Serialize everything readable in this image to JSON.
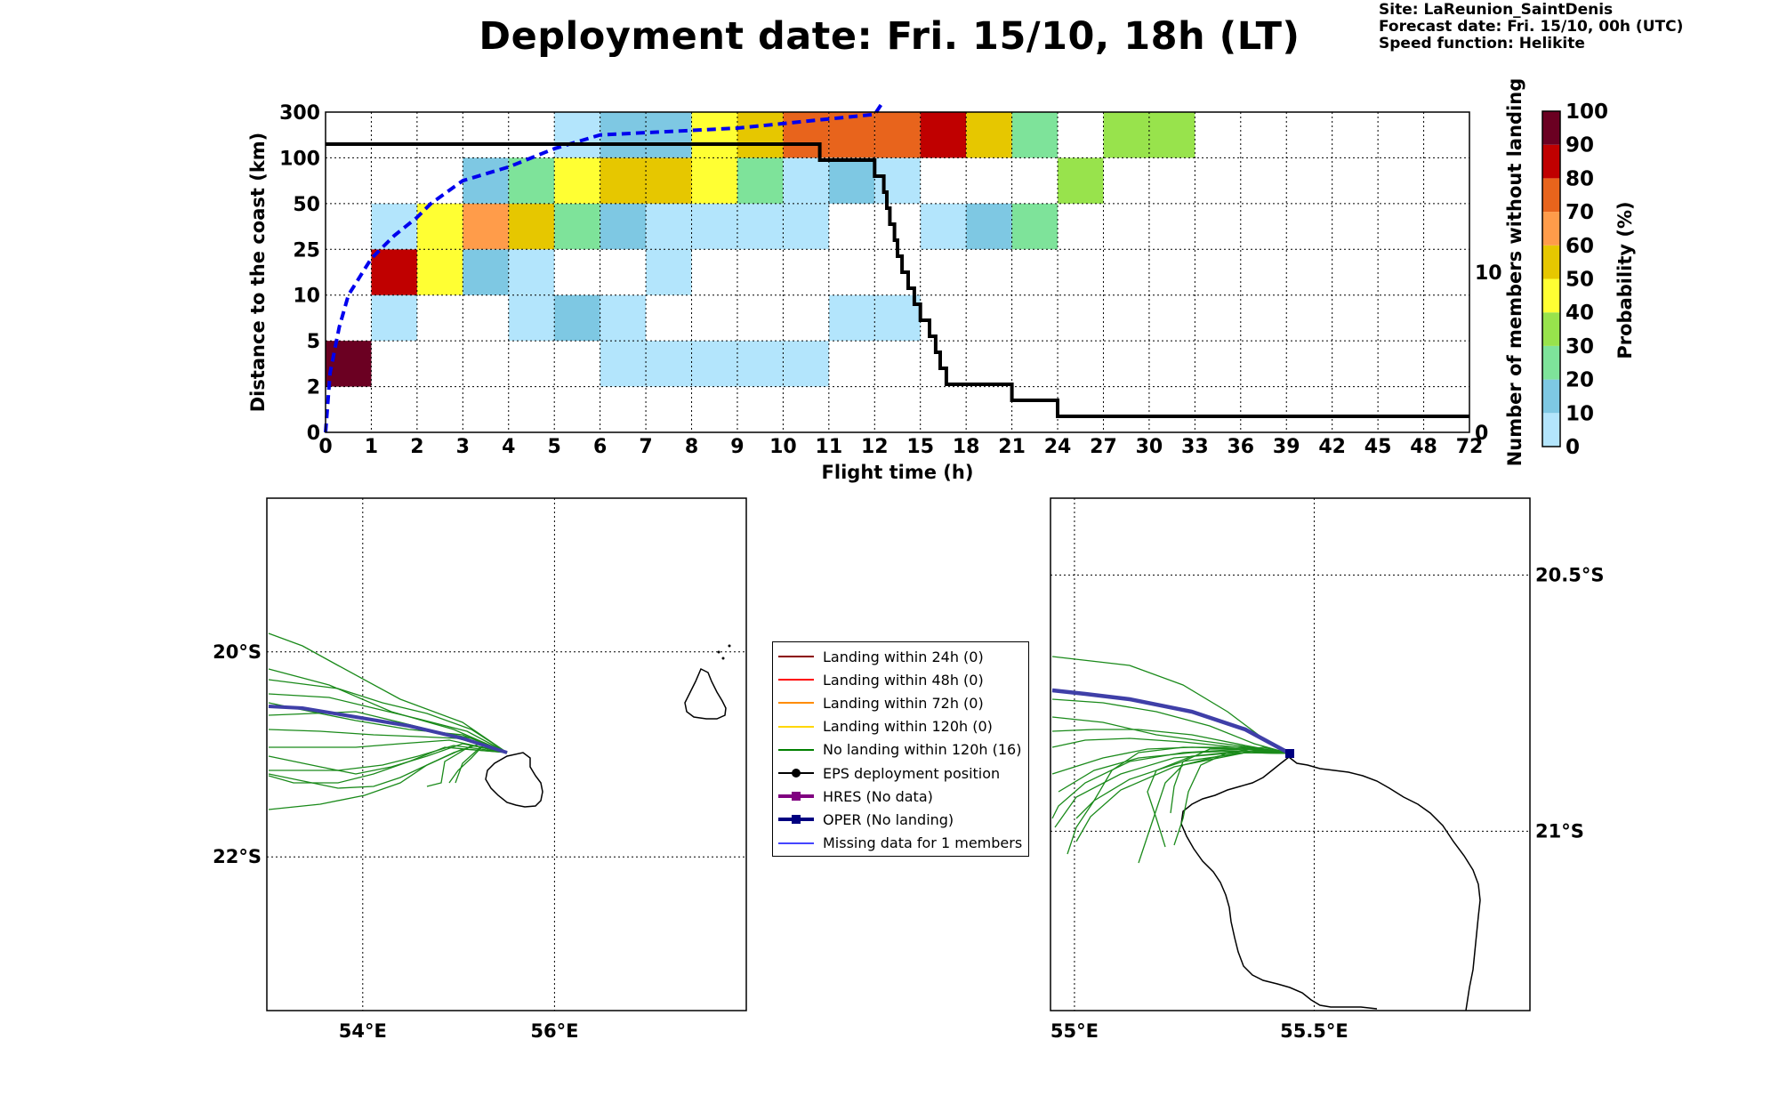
{
  "title": "Deployment date: Fri. 15/10, 18h (LT)",
  "meta": {
    "site": "Site: LaReunion_SaintDenis",
    "forecast": "Forecast date: Fri. 15/10, 00h (UTC)",
    "speed": "Speed function: Helikite"
  },
  "chart_data": [
    {
      "type": "heatmap",
      "xlabel": "Flight time (h)",
      "ylabel": "Distance to the coast (km)",
      "y2label": "Number of members without landing",
      "colorbar_label": "Probability (%)",
      "x_categories": [
        "0",
        "1",
        "2",
        "3",
        "4",
        "5",
        "6",
        "7",
        "8",
        "9",
        "10",
        "11",
        "12",
        "15",
        "18",
        "21",
        "24",
        "27",
        "30",
        "33",
        "36",
        "39",
        "42",
        "45",
        "48",
        "72"
      ],
      "y_categories": [
        "0",
        "2",
        "5",
        "10",
        "25",
        "50",
        "100",
        "300"
      ],
      "y2_ticks": [
        "0",
        "10"
      ],
      "y2_range": [
        0,
        18
      ],
      "colorbar_ticks": [
        "0",
        "10",
        "20",
        "30",
        "40",
        "50",
        "60",
        "70",
        "80",
        "90",
        "100"
      ],
      "colorbar_colors": [
        "#b3e5fc",
        "#7ec8e3",
        "#7ee39a",
        "#98e34c",
        "#ffff33",
        "#e6c700",
        "#ff9c4a",
        "#e8641c",
        "#c00000",
        "#6b0022"
      ],
      "grid": true,
      "cells": [
        {
          "t0": 0,
          "t1": 1,
          "y": 1,
          "p": 100
        },
        {
          "t0": 1,
          "t1": 2,
          "y": 2,
          "p": 5
        },
        {
          "t0": 1,
          "t1": 2,
          "y": 3,
          "p": 85
        },
        {
          "t0": 1,
          "t1": 2,
          "y": 4,
          "p": 5
        },
        {
          "t0": 2,
          "t1": 3,
          "y": 3,
          "p": 45
        },
        {
          "t0": 2,
          "t1": 3,
          "y": 4,
          "p": 45
        },
        {
          "t0": 3,
          "t1": 4,
          "y": 3,
          "p": 15
        },
        {
          "t0": 3,
          "t1": 4,
          "y": 4,
          "p": 65
        },
        {
          "t0": 3,
          "t1": 4,
          "y": 5,
          "p": 15
        },
        {
          "t0": 4,
          "t1": 5,
          "y": 2,
          "p": 5
        },
        {
          "t0": 4,
          "t1": 5,
          "y": 3,
          "p": 5
        },
        {
          "t0": 4,
          "t1": 5,
          "y": 4,
          "p": 55
        },
        {
          "t0": 4,
          "t1": 5,
          "y": 5,
          "p": 25
        },
        {
          "t0": 5,
          "t1": 6,
          "y": 2,
          "p": 15
        },
        {
          "t0": 5,
          "t1": 6,
          "y": 4,
          "p": 25
        },
        {
          "t0": 5,
          "t1": 6,
          "y": 5,
          "p": 45
        },
        {
          "t0": 5,
          "t1": 6,
          "y": 6,
          "p": 5
        },
        {
          "t0": 6,
          "t1": 7,
          "y": 1,
          "p": 5
        },
        {
          "t0": 6,
          "t1": 7,
          "y": 2,
          "p": 5
        },
        {
          "t0": 6,
          "t1": 7,
          "y": 4,
          "p": 15
        },
        {
          "t0": 6,
          "t1": 7,
          "y": 5,
          "p": 55
        },
        {
          "t0": 6,
          "t1": 7,
          "y": 6,
          "p": 15
        },
        {
          "t0": 7,
          "t1": 8,
          "y": 1,
          "p": 5
        },
        {
          "t0": 7,
          "t1": 8,
          "y": 3,
          "p": 5
        },
        {
          "t0": 7,
          "t1": 8,
          "y": 4,
          "p": 5
        },
        {
          "t0": 7,
          "t1": 8,
          "y": 5,
          "p": 55
        },
        {
          "t0": 7,
          "t1": 8,
          "y": 6,
          "p": 15
        },
        {
          "t0": 8,
          "t1": 9,
          "y": 1,
          "p": 5
        },
        {
          "t0": 8,
          "t1": 9,
          "y": 4,
          "p": 5
        },
        {
          "t0": 8,
          "t1": 9,
          "y": 5,
          "p": 45
        },
        {
          "t0": 8,
          "t1": 9,
          "y": 6,
          "p": 45
        },
        {
          "t0": 9,
          "t1": 10,
          "y": 1,
          "p": 5
        },
        {
          "t0": 9,
          "t1": 10,
          "y": 4,
          "p": 5
        },
        {
          "t0": 9,
          "t1": 10,
          "y": 5,
          "p": 25
        },
        {
          "t0": 9,
          "t1": 10,
          "y": 6,
          "p": 55
        },
        {
          "t0": 10,
          "t1": 11,
          "y": 1,
          "p": 5
        },
        {
          "t0": 10,
          "t1": 11,
          "y": 4,
          "p": 5
        },
        {
          "t0": 10,
          "t1": 11,
          "y": 5,
          "p": 5
        },
        {
          "t0": 10,
          "t1": 11,
          "y": 6,
          "p": 75
        },
        {
          "t0": 11,
          "t1": 12,
          "y": 2,
          "p": 5
        },
        {
          "t0": 11,
          "t1": 12,
          "y": 5,
          "p": 15
        },
        {
          "t0": 11,
          "t1": 12,
          "y": 6,
          "p": 75
        },
        {
          "t0": 12,
          "t1": 15,
          "y": 2,
          "p": 5
        },
        {
          "t0": 12,
          "t1": 15,
          "y": 5,
          "p": 5
        },
        {
          "t0": 12,
          "t1": 15,
          "y": 6,
          "p": 75
        },
        {
          "t0": 15,
          "t1": 18,
          "y": 4,
          "p": 5
        },
        {
          "t0": 15,
          "t1": 18,
          "y": 6,
          "p": 85
        },
        {
          "t0": 18,
          "t1": 21,
          "y": 4,
          "p": 15
        },
        {
          "t0": 18,
          "t1": 21,
          "y": 6,
          "p": 55
        },
        {
          "t0": 21,
          "t1": 24,
          "y": 4,
          "p": 25
        },
        {
          "t0": 21,
          "t1": 24,
          "y": 6,
          "p": 25
        },
        {
          "t0": 24,
          "t1": 27,
          "y": 5,
          "p": 35
        },
        {
          "t0": 27,
          "t1": 33,
          "y": 6,
          "p": 35
        }
      ],
      "median_distance_line": {
        "style": "dashed",
        "color": "#0000ee",
        "x": [
          0,
          0.1,
          0.3,
          0.5,
          1,
          1.5,
          2,
          2.3,
          3,
          4,
          5,
          6,
          7,
          8,
          9,
          10,
          11,
          12,
          12.5
        ],
        "y": [
          0,
          1.3,
          2.3,
          3.0,
          3.8,
          4.3,
          4.7,
          5.0,
          5.5,
          5.8,
          6.2,
          6.5,
          6.55,
          6.6,
          6.65,
          6.75,
          6.85,
          6.95,
          7.2
        ]
      },
      "members_without_landing_line": {
        "style": "step",
        "color": "#000000",
        "x": [
          0,
          10.8,
          12,
          12.6,
          12.8,
          13,
          13.3,
          13.5,
          13.8,
          14.2,
          14.6,
          15,
          15.6,
          16,
          16.3,
          16.7,
          18,
          21,
          22,
          24
        ],
        "y": [
          18,
          17,
          16,
          15,
          14,
          13,
          12,
          11,
          10,
          9,
          8,
          7,
          6,
          5,
          4,
          3,
          3,
          2,
          2,
          1
        ]
      }
    },
    {
      "type": "map",
      "name": "Overview map",
      "x_ticks": [
        "54°E",
        "56°E"
      ],
      "y_ticks": [
        "20°S",
        "22°S"
      ],
      "lon_range": [
        53,
        58
      ],
      "lat_range": [
        -23.5,
        -18.5
      ]
    },
    {
      "type": "map",
      "name": "Zoomed map",
      "x_ticks": [
        "55°E",
        "55.5°E"
      ],
      "y_ticks": [
        "20.5°S",
        "21°S"
      ],
      "lon_range": [
        54.95,
        55.95
      ],
      "lat_range": [
        -21.35,
        -20.35
      ]
    }
  ],
  "legend": [
    {
      "label": "Landing within 24h (0)",
      "color": "#8b0000",
      "marker": "none"
    },
    {
      "label": "Landing within 48h (0)",
      "color": "#ff0000",
      "marker": "none"
    },
    {
      "label": "Landing within 72h (0)",
      "color": "#ff8c00",
      "marker": "none"
    },
    {
      "label": "Landing within 120h (0)",
      "color": "#ffd700",
      "marker": "none"
    },
    {
      "label": "No landing within 120h (16)",
      "color": "#008000",
      "marker": "none"
    },
    {
      "label": "EPS deployment position",
      "color": "#000000",
      "marker": "circle"
    },
    {
      "label": "HRES (No data)",
      "color": "#800080",
      "marker": "square"
    },
    {
      "label": "OPER (No landing)",
      "color": "#000080",
      "marker": "square"
    },
    {
      "label": "Missing data for 1 members",
      "color": "#4444ff",
      "marker": "none"
    }
  ]
}
